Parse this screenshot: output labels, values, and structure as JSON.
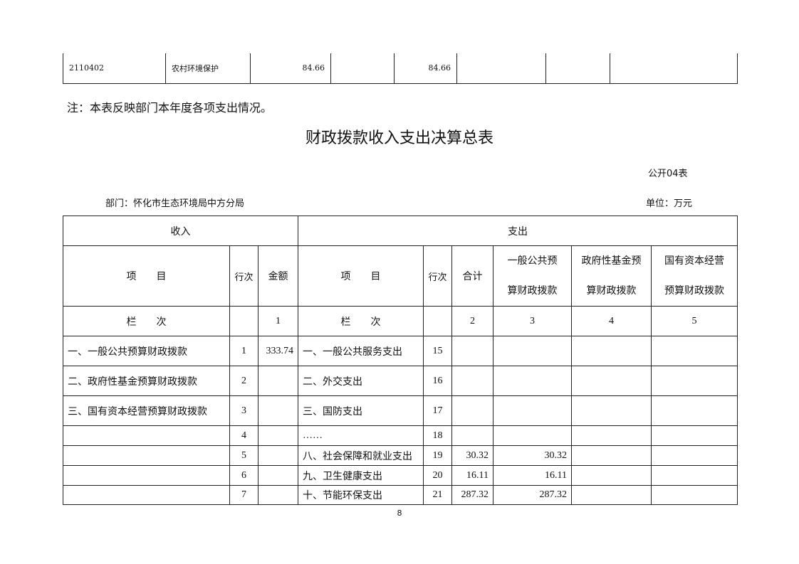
{
  "top_row": {
    "code": "2110402",
    "name": "农村环境保护",
    "total": "84.66",
    "col2": "",
    "col3": "84.66",
    "col4": "",
    "col5": "",
    "col6": "",
    "col7": ""
  },
  "note": "注：本表反映部门本年度各项支出情况。",
  "title": "财政拨款收入支出决算总表",
  "form_no": "公开04表",
  "department": "部门：怀化市生态环境局中方分局",
  "unit": "单位：万元",
  "header": {
    "income": "收入",
    "expense": "支出",
    "item": "项　　目",
    "line_no": "行次",
    "amount": "金额",
    "item2": "项　　目",
    "line_no2": "行次",
    "total": "合计",
    "general_a": "一般公共预",
    "general_b": "算财政拨款",
    "fund_a": "政府性基金预",
    "fund_b": "算财政拨款",
    "state_a": "国有资本经营",
    "state_b": "预算财政拨款",
    "col_label": "栏　　次",
    "c1": "1",
    "col_label2": "栏　　次",
    "c2": "2",
    "c3": "3",
    "c4": "4",
    "c5": "5"
  },
  "rows": [
    {
      "in_item": "一、一般公共预算财政拨款",
      "in_no": "1",
      "in_amt": "333.74",
      "out_item": "一、一般公共服务支出",
      "out_no": "15",
      "total": "",
      "general": "",
      "fund": "",
      "state": ""
    },
    {
      "in_item": "二、政府性基金预算财政拨款",
      "in_no": "2",
      "in_amt": "",
      "out_item": "二、外交支出",
      "out_no": "16",
      "total": "",
      "general": "",
      "fund": "",
      "state": ""
    },
    {
      "in_item": "三、国有资本经营预算财政拨款",
      "in_no": "3",
      "in_amt": "",
      "out_item": "三、国防支出",
      "out_no": "17",
      "total": "",
      "general": "",
      "fund": "",
      "state": ""
    },
    {
      "in_item": "",
      "in_no": "4",
      "in_amt": "",
      "out_item": "……",
      "out_no": "18",
      "total": "",
      "general": "",
      "fund": "",
      "state": ""
    },
    {
      "in_item": "",
      "in_no": "5",
      "in_amt": "",
      "out_item": "八、社会保障和就业支出",
      "out_no": "19",
      "total": "30.32",
      "general": "30.32",
      "fund": "",
      "state": ""
    },
    {
      "in_item": "",
      "in_no": "6",
      "in_amt": "",
      "out_item": "九、卫生健康支出",
      "out_no": "20",
      "total": "16.11",
      "general": "16.11",
      "fund": "",
      "state": ""
    },
    {
      "in_item": "",
      "in_no": "7",
      "in_amt": "",
      "out_item": "十、节能环保支出",
      "out_no": "21",
      "total": "287.32",
      "general": "287.32",
      "fund": "",
      "state": ""
    }
  ],
  "page_number": "8"
}
